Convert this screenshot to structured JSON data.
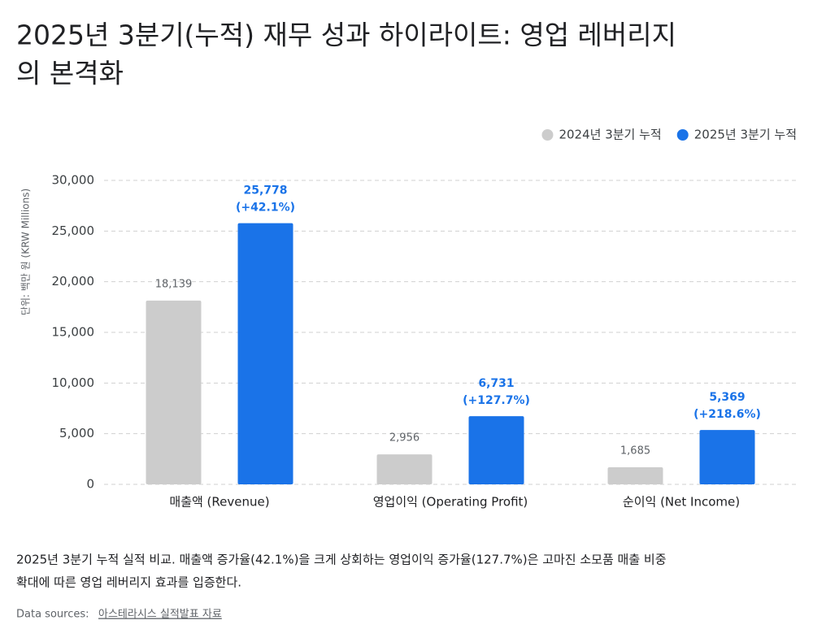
{
  "chart_data": {
    "type": "bar",
    "title_lines": [
      "2025년 3분기(누적) 재무 성과 하이라이트: 영업 레버리지",
      "의 본격화"
    ],
    "y_label": "단위: 백만 원 (KRW Millions)",
    "categories": [
      "매출액 (Revenue)",
      "영업이익 (Operating Profit)",
      "순이익 (Net Income)"
    ],
    "series": [
      {
        "name": "2024년 3분기 누적",
        "color": "#cccccc",
        "values": [
          18139,
          2956,
          1685
        ],
        "value_labels": [
          "18,139",
          "2,956",
          "1,685"
        ]
      },
      {
        "name": "2025년 3분기 누적",
        "color": "#1a73e8",
        "values": [
          25778,
          6731,
          5369
        ],
        "value_labels": [
          "25,778",
          "6,731",
          "5,369"
        ],
        "change_labels": [
          "(+42.1%)",
          "(+127.7%)",
          "(+218.6%)"
        ]
      }
    ],
    "ylim": [
      0,
      30000
    ],
    "yticks": [
      0,
      {
        "value": 5000,
        "label": "5,000"
      },
      {
        "value": 10000,
        "label": "10,000"
      },
      {
        "value": 15000,
        "label": "15,000"
      },
      {
        "value": 20000,
        "label": "20,000"
      },
      {
        "value": 25000,
        "label": "25,000"
      },
      {
        "value": 30000,
        "label": "30,000"
      }
    ],
    "grid": true
  },
  "caption": [
    "2025년 3분기 누적 실적 비교. 매출액 증가율(42.1%)을 크게 상회하는 영업이익 증가율(127.7%)은 고마진 소모품 매출 비중",
    "확대에 따른 영업 레버리지 효과를 입증한다."
  ],
  "source": {
    "label": "Data sources:",
    "link": "아스테라시스 실적발표 자료"
  }
}
